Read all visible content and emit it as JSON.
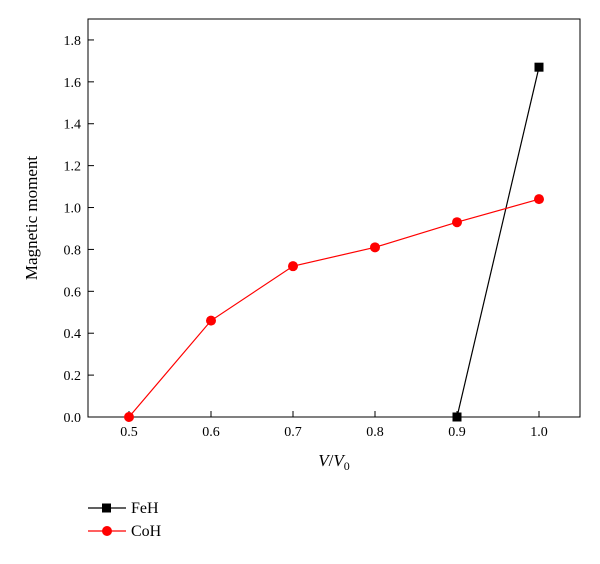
{
  "chart_data": {
    "type": "line",
    "title": "",
    "xlabel": {
      "main": "V",
      "slash": "/",
      "sub_base": "V",
      "sub_index": "0"
    },
    "ylabel": "Magnetic moment",
    "xlim": [
      0.45,
      1.05
    ],
    "ylim": [
      0.0,
      1.9
    ],
    "x_ticks": [
      0.5,
      0.6,
      0.7,
      0.8,
      0.9,
      1.0
    ],
    "x_tick_labels": [
      "0.5",
      "0.6",
      "0.7",
      "0.8",
      "0.9",
      "1.0"
    ],
    "y_ticks": [
      0.0,
      0.2,
      0.4,
      0.6,
      0.8,
      1.0,
      1.2,
      1.4,
      1.6,
      1.8
    ],
    "y_tick_labels": [
      "0.0",
      "0.2",
      "0.4",
      "0.6",
      "0.8",
      "1.0",
      "1.2",
      "1.4",
      "1.6",
      "1.8"
    ],
    "grid": false,
    "legend_position": "bottom-left, below plot",
    "series": [
      {
        "name": "FeH",
        "color": "#000000",
        "marker": "square",
        "x": [
          0.9,
          1.0
        ],
        "values": [
          0.0,
          1.67
        ]
      },
      {
        "name": "CoH",
        "color": "#ff0000",
        "marker": "circle",
        "x": [
          0.5,
          0.6,
          0.7,
          0.8,
          0.9,
          1.0
        ],
        "values": [
          0.0,
          0.46,
          0.72,
          0.81,
          0.93,
          1.04
        ]
      }
    ]
  }
}
